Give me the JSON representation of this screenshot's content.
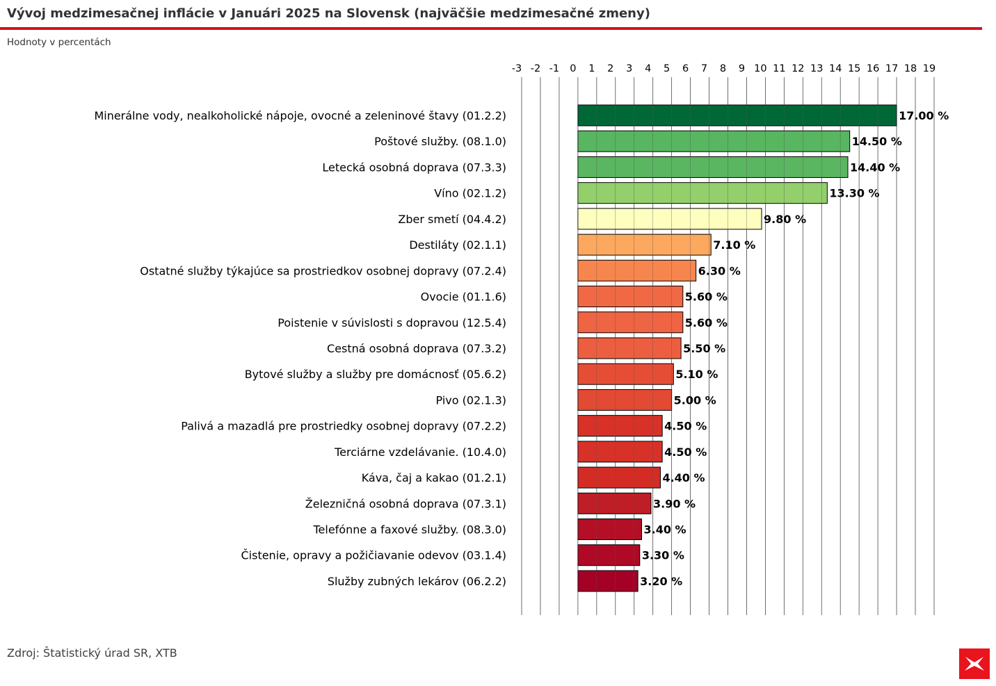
{
  "header": {
    "title": "Vývoj medzimesačnej inflácie v Januári 2025 na Slovensk (najväčšie medzimesačné zmeny)",
    "subtitle": "Hodnoty v percentách"
  },
  "footer": {
    "source": "Zdroj: Štatistický úrad SR, XTB",
    "logo_icon": "xtb-logo-icon"
  },
  "colors": {
    "accent": "#d0141d",
    "logo": "#e8141e"
  },
  "chart_data": {
    "type": "bar",
    "orientation": "horizontal",
    "title": "Vývoj medzimesačnej inflácie v Januári 2025 na Slovensk (najväčšie medzimesačné zmeny)",
    "subtitle": "Hodnoty v percentách",
    "xlim": [
      -3,
      19
    ],
    "x_ticks": [
      -3,
      -2,
      -1,
      0,
      1,
      2,
      3,
      4,
      5,
      6,
      7,
      8,
      9,
      10,
      11,
      12,
      13,
      14,
      15,
      16,
      17,
      18,
      19
    ],
    "x_axis_position": "top",
    "grid": {
      "vertical": true,
      "horizontal": false
    },
    "value_suffix": " %",
    "categories": [
      "Minerálne vody, nealkoholické nápoje, ovocné a zeleninové štavy (01.2.2)",
      "Poštové služby. (08.1.0)",
      "Letecká osobná doprava (07.3.3)",
      "Víno (02.1.2)",
      "Zber smetí (04.4.2)",
      "Destiláty (02.1.1)",
      "Ostatné služby týkajúce sa prostriedkov osobnej dopravy (07.2.4)",
      "Ovocie (01.1.6)",
      "Poistenie v súvislosti s dopravou (12.5.4)",
      "Cestná osobná doprava (07.3.2)",
      "Bytové služby a služby pre domácnosť (05.6.2)",
      "Pivo (02.1.3)",
      "Palivá a mazadlá pre prostriedky osobnej dopravy (07.2.2)",
      "Terciárne vzdelávanie. (10.4.0)",
      "Káva, čaj a kakao (01.2.1)",
      "Železničná osobná doprava (07.3.1)",
      "Telefónne a faxové služby. (08.3.0)",
      "Čistenie, opravy a požičiavanie odevov (03.1.4)",
      "Služby zubných lekárov (06.2.2)"
    ],
    "values": [
      17.0,
      14.5,
      14.4,
      13.3,
      9.8,
      7.1,
      6.3,
      5.6,
      5.6,
      5.5,
      5.1,
      5.0,
      4.5,
      4.5,
      4.4,
      3.9,
      3.4,
      3.3,
      3.2
    ],
    "value_labels": [
      "17.00 %",
      "14.50 %",
      "14.40 %",
      "13.30 %",
      "9.80 %",
      "7.10 %",
      "6.30 %",
      "5.60 %",
      "5.60 %",
      "5.50 %",
      "5.10 %",
      "5.00 %",
      "4.50 %",
      "4.50 %",
      "4.40 %",
      "3.90 %",
      "3.40 %",
      "3.30 %",
      "3.20 %"
    ],
    "bar_colors": [
      "#006837",
      "#57b65f",
      "#5ab660",
      "#93cf6b",
      "#feffbe",
      "#fda85f",
      "#f7864e",
      "#f06944",
      "#ef6443",
      "#ed5e40",
      "#e54e35",
      "#e34a33",
      "#d83128",
      "#d83128",
      "#d42c25",
      "#c01e26",
      "#b40f26",
      "#af0926",
      "#a50026"
    ]
  }
}
